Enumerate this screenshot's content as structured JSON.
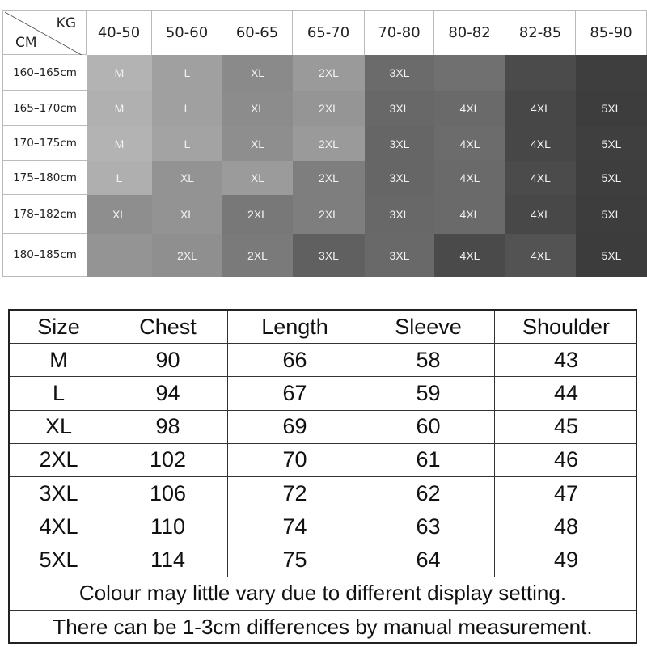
{
  "size_by_height_weight": {
    "corner": {
      "weight_label": "KG",
      "height_label": "CM"
    },
    "weight_ranges": [
      "40-50",
      "50-60",
      "60-65",
      "65-70",
      "70-80",
      "80-82",
      "82-85",
      "85-90"
    ],
    "rows": [
      {
        "height": "160–165cm",
        "sizes": [
          "M",
          "L",
          "XL",
          "2XL",
          "3XL",
          "",
          "",
          ""
        ],
        "colors": [
          "#b3b3b3",
          "#a0a0a0",
          "#8a8a8a",
          "#9a9a9a",
          "#6b6b6b",
          "#707070",
          "#4b4b4b",
          "#3e3e3e"
        ]
      },
      {
        "height": "165–170cm",
        "sizes": [
          "M",
          "L",
          "XL",
          "2XL",
          "3XL",
          "4XL",
          "4XL",
          "5XL"
        ],
        "colors": [
          "#b0b0b0",
          "#a0a0a0",
          "#8c8c8c",
          "#959595",
          "#686868",
          "#6a6a6a",
          "#474747",
          "#3d3d3d"
        ]
      },
      {
        "height": "170–175cm",
        "sizes": [
          "M",
          "L",
          "XL",
          "2XL",
          "3XL",
          "4XL",
          "4XL",
          "5XL"
        ],
        "colors": [
          "#b3b3b3",
          "#a3a3a3",
          "#8e8e8e",
          "#9a9a9a",
          "#666666",
          "#6c6c6c",
          "#474747",
          "#3f3f3f"
        ]
      },
      {
        "height": "175–180cm",
        "sizes": [
          "L",
          "XL",
          "XL",
          "2XL",
          "3XL",
          "4XL",
          "4XL",
          "5XL"
        ],
        "colors": [
          "#afafaf",
          "#939393",
          "#9b9b9b",
          "#7e7e7e",
          "#666666",
          "#6a6a6a",
          "#4b4b4b",
          "#3e3e3e"
        ]
      },
      {
        "height": "178–182cm",
        "sizes": [
          "XL",
          "XL",
          "2XL",
          "2XL",
          "3XL",
          "4XL",
          "4XL",
          "5XL"
        ],
        "colors": [
          "#8e8e8e",
          "#939393",
          "#787878",
          "#7e7e7e",
          "#686868",
          "#6a6a6a",
          "#484848",
          "#3d3d3d"
        ]
      },
      {
        "height": "180–185cm",
        "sizes": [
          "",
          "2XL",
          "2XL",
          "3XL",
          "3XL",
          "4XL",
          "4XL",
          "5XL"
        ],
        "colors": [
          "#949494",
          "#8f8f8f",
          "#7a7a7a",
          "#606060",
          "#696969",
          "#4a4a4a",
          "#535353",
          "#3c3c3c"
        ]
      }
    ]
  },
  "measurements": {
    "headers": [
      "Size",
      "Chest",
      "Length",
      "Sleeve",
      "Shoulder"
    ],
    "rows": [
      [
        "M",
        "90",
        "66",
        "58",
        "43"
      ],
      [
        "L",
        "94",
        "67",
        "59",
        "44"
      ],
      [
        "XL",
        "98",
        "69",
        "60",
        "45"
      ],
      [
        "2XL",
        "102",
        "70",
        "61",
        "46"
      ],
      [
        "3XL",
        "106",
        "72",
        "62",
        "47"
      ],
      [
        "4XL",
        "110",
        "74",
        "63",
        "48"
      ],
      [
        "5XL",
        "114",
        "75",
        "64",
        "49"
      ]
    ],
    "notes": [
      "Colour may little vary due to different display setting.",
      "There can be 1-3cm differences by manual measurement."
    ]
  }
}
